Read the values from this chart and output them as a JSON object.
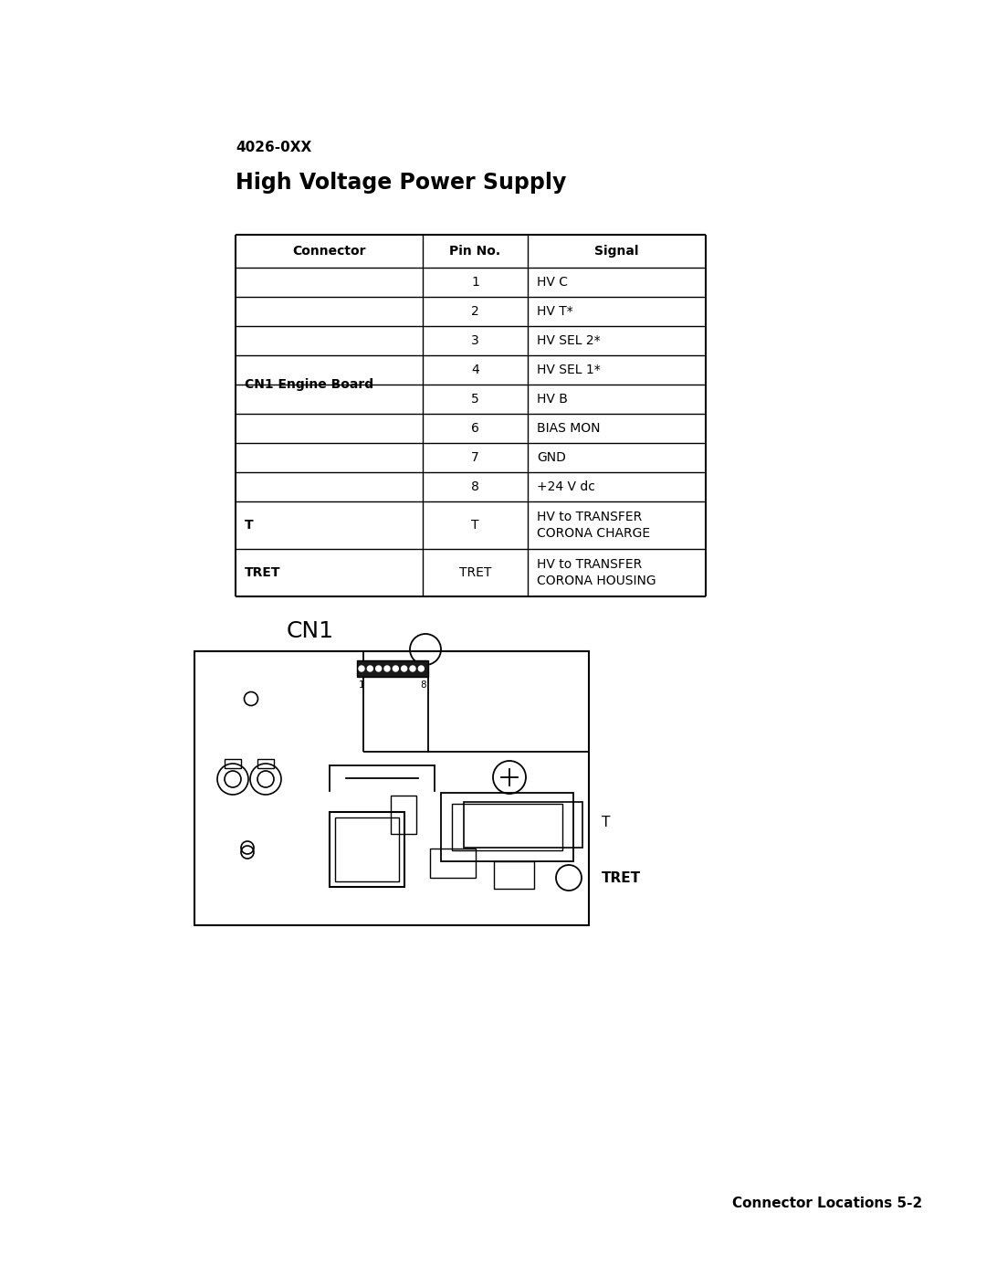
{
  "page_title_small": "4026-0XX",
  "page_title_large": "High Voltage Power Supply",
  "table_headers": [
    "Connector",
    "Pin No.",
    "Signal"
  ],
  "table_rows": [
    [
      "CN1 Engine Board",
      "1",
      "HV C"
    ],
    [
      "",
      "2",
      "HV T*"
    ],
    [
      "",
      "3",
      "HV SEL 2*"
    ],
    [
      "",
      "4",
      "HV SEL 1*"
    ],
    [
      "",
      "5",
      "HV B"
    ],
    [
      "",
      "6",
      "BIAS MON"
    ],
    [
      "",
      "7",
      "GND"
    ],
    [
      "",
      "8",
      "+24 V dc"
    ],
    [
      "T",
      "T",
      "HV to TRANSFER\nCORONA CHARGE"
    ],
    [
      "TRET",
      "TRET",
      "HV to TRANSFER\nCORONA HOUSING"
    ]
  ],
  "diagram_label": "CN1",
  "label_T": "T",
  "label_TRET": "TRET",
  "footer_text": "Connector Locations 5-2",
  "background_color": "#ffffff",
  "text_color": "#000000",
  "line_color": "#000000"
}
